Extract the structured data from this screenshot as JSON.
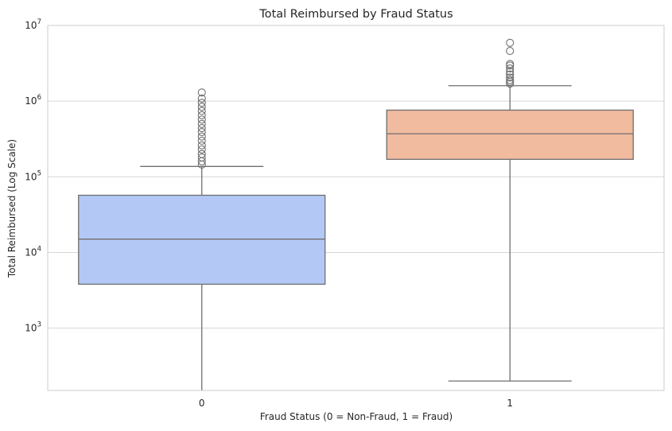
{
  "chart_data": {
    "type": "box",
    "title": "Total Reimbursed by Fraud Status",
    "xlabel": "Fraud Status (0 = Non-Fraud, 1 = Fraud)",
    "ylabel": "Total Reimbursed (Log Scale)",
    "yscale": "log",
    "ylim": [
      150,
      10000000
    ],
    "yticks": [
      {
        "base": "10",
        "exp": "3",
        "value": 1000
      },
      {
        "base": "10",
        "exp": "4",
        "value": 10000
      },
      {
        "base": "10",
        "exp": "5",
        "value": 100000
      },
      {
        "base": "10",
        "exp": "6",
        "value": 1000000
      },
      {
        "base": "10",
        "exp": "7",
        "value": 10000000
      }
    ],
    "grid": true,
    "categories": [
      "0",
      "1"
    ],
    "boxes": [
      {
        "category": "0",
        "color": "#b3c8f5",
        "whisker_low": 150,
        "q1": 3800,
        "median": 15000,
        "q3": 57000,
        "whisker_high": 137000,
        "outliers": [
          145000,
          160000,
          180000,
          200000,
          230000,
          260000,
          300000,
          340000,
          390000,
          440000,
          500000,
          570000,
          650000,
          740000,
          840000,
          950000,
          1080000,
          1300000
        ]
      },
      {
        "category": "1",
        "color": "#f1bba0",
        "whisker_low": 200,
        "q1": 170000,
        "median": 370000,
        "q3": 760000,
        "whisker_high": 1600000,
        "outliers": [
          1700000,
          1800000,
          1900000,
          2050000,
          2250000,
          2450000,
          2700000,
          2950000,
          3100000,
          4600000,
          5900000
        ]
      }
    ]
  }
}
